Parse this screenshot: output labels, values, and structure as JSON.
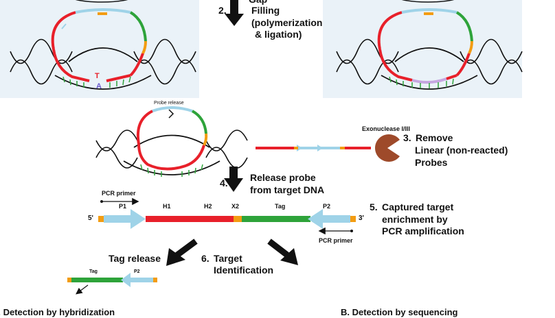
{
  "steps": {
    "s2_number": "2.",
    "s2_top": "Gap",
    "s2_line1": "Filling",
    "s2_line2": "(polymerization",
    "s2_line3": "& ligation)",
    "s3_number": "3.",
    "s3_line1": "Remove",
    "s3_line2": "Linear (non-reacted)",
    "s3_line3": "Probes",
    "s4_number": "4.",
    "s4_line1": "Release probe",
    "s4_line2": "from target DNA",
    "s5_number": "5.",
    "s5_line1": "Captured target",
    "s5_line2": "enrichment by",
    "s5_line3": "PCR amplification",
    "s6_number": "6.",
    "s6_line1": "Target",
    "s6_line2": "Identification"
  },
  "labels": {
    "probe_release": "Probe release",
    "exonuclease": "Exonuclease I/III",
    "pcr_primer_left": "PCR primer",
    "pcr_primer_right": "PCR primer",
    "tag_release": "Tag release",
    "base_top": "T",
    "base_bottom": "A"
  },
  "construct": {
    "five_prime": "5'",
    "three_prime": "3'",
    "segments": [
      "P1",
      "H1",
      "H2",
      "X2",
      "Tag",
      "P2"
    ]
  },
  "tag_fragment": {
    "tag": "Tag",
    "p2": "P2"
  },
  "bottom": {
    "left_partial": "A. Detection by hybridization",
    "right_partial": "B. Detection by sequencing"
  },
  "colors": {
    "panel_bg": "#eaf2f8",
    "probe_red": "#e8202a",
    "probe_green": "#2ea33a",
    "probe_blue": "#9fd3e8",
    "probe_orange": "#f39c12",
    "probe_lilac": "#c6a6e0",
    "exonuclease": "#9e4a2a"
  }
}
